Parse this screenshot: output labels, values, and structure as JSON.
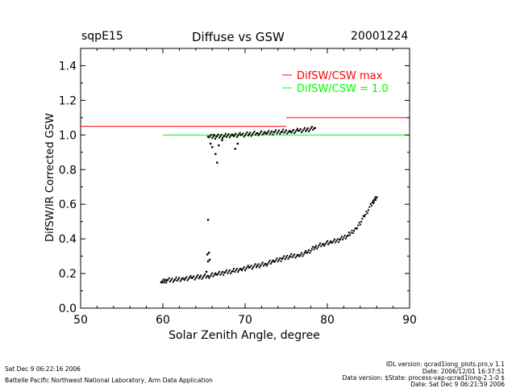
{
  "header": {
    "site": "sqpE15",
    "title": "Diffuse vs GSW",
    "date": "20001224"
  },
  "footer": {
    "left_line1": "Sat Dec  9 06:22:16 2006",
    "left_line2": "Battelle Pacific Northwest National Laboratory, Arm Data Application",
    "right_line1": "IDL version: qcrad1long_plots.pro,v 1.1",
    "right_line2": "Date: 2006/12/01 16:37:51",
    "right_line3": "Data version: $State: process-vap-qcrad1long-2.1-0 $",
    "right_line4": "Date: Sat Dec  9 06:21:59 2006"
  },
  "chart_data": {
    "type": "scatter",
    "title": "Diffuse vs GSW",
    "xlabel": "Solar Zenith Angle, degree",
    "ylabel": "DifSW/IR Corrected GSW",
    "xlim": [
      50,
      90
    ],
    "ylim": [
      0,
      1.5
    ],
    "xticks": [
      50,
      60,
      70,
      80,
      90
    ],
    "yticks": [
      0.0,
      0.2,
      0.4,
      0.6,
      0.8,
      1.0,
      1.2,
      1.4
    ],
    "ytick_labels": [
      "0.0",
      "0.2",
      "0.4",
      "0.6",
      "0.8",
      "1.0",
      "1.2",
      "1.4"
    ],
    "legend": [
      {
        "label": "DifSW/CSW max",
        "color": "#ff0000"
      },
      {
        "label": "DifSW/CSW = 1.0",
        "color": "#00ff00"
      }
    ],
    "ref_lines": [
      {
        "name": "difsw-csw-max-low",
        "color": "#ff0000",
        "x": [
          50,
          75
        ],
        "y": 1.05
      },
      {
        "name": "difsw-csw-max-high",
        "color": "#ff0000",
        "x": [
          75,
          90
        ],
        "y": 1.1
      },
      {
        "name": "difsw-csw-one",
        "color": "#00ff00",
        "x": [
          60,
          90
        ],
        "y": 1.0
      }
    ],
    "series": [
      {
        "name": "lower branch (ratio)",
        "x": [
          59.8,
          60.5,
          61.5,
          62.5,
          63.5,
          64.5,
          65.5,
          66.5,
          67.5,
          68.5,
          69.5,
          70.5,
          71.5,
          72.5,
          73.5,
          74.5,
          75.5,
          76.5,
          77.5,
          78.5,
          79.5,
          80.5,
          81.5,
          82.5,
          83.5,
          84.5,
          85.5,
          86.0
        ],
        "y": [
          0.15,
          0.16,
          0.165,
          0.17,
          0.175,
          0.18,
          0.185,
          0.195,
          0.205,
          0.215,
          0.225,
          0.235,
          0.245,
          0.255,
          0.27,
          0.285,
          0.3,
          0.305,
          0.32,
          0.35,
          0.37,
          0.38,
          0.395,
          0.42,
          0.46,
          0.53,
          0.61,
          0.64
        ]
      },
      {
        "name": "upper branch (ratio)",
        "x": [
          65.5,
          66.5,
          67.5,
          68.5,
          69.5,
          70.5,
          71.5,
          72.5,
          73.5,
          74.5,
          75.5,
          76.5,
          77.5,
          78.5
        ],
        "y": [
          0.99,
          0.99,
          0.995,
          1.0,
          1.0,
          1.005,
          1.01,
          1.01,
          1.015,
          1.02,
          1.02,
          1.025,
          1.03,
          1.04
        ]
      },
      {
        "name": "outliers",
        "x": [
          65.5,
          65.6,
          65.7,
          65.8,
          66.0,
          66.2,
          66.4,
          66.6,
          66.8,
          67.2,
          68.8,
          69.1,
          65.4,
          65.5,
          65.3
        ],
        "y": [
          0.51,
          0.32,
          0.28,
          0.95,
          0.93,
          1.0,
          0.89,
          0.84,
          0.94,
          0.97,
          0.92,
          0.95,
          0.31,
          0.27,
          0.21
        ]
      }
    ]
  }
}
